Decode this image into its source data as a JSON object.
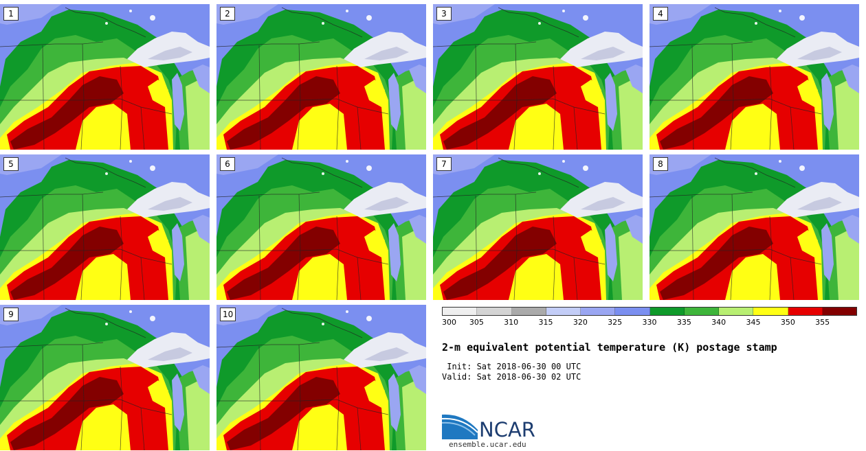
{
  "panels": [
    {
      "label": "1"
    },
    {
      "label": "2"
    },
    {
      "label": "3"
    },
    {
      "label": "4"
    },
    {
      "label": "5"
    },
    {
      "label": "6"
    },
    {
      "label": "7"
    },
    {
      "label": "8"
    },
    {
      "label": "9"
    },
    {
      "label": "10"
    }
  ],
  "colorbar": {
    "ticks": [
      "300",
      "305",
      "310",
      "315",
      "320",
      "325",
      "330",
      "335",
      "340",
      "345",
      "350",
      "355"
    ],
    "colors": [
      "#efefef",
      "#d4d4d4",
      "#aaaaaa",
      "#c3cdf7",
      "#9aa6f2",
      "#7b8ff0",
      "#0f9a2a",
      "#3eb53a",
      "#b8ef72",
      "#ffff14",
      "#e60000",
      "#830000"
    ]
  },
  "title": "2-m equivalent potential temperature (K) postage stamp",
  "init": " Init: Sat 2018-06-30 00 UTC",
  "valid": "Valid: Sat 2018-06-30 02 UTC",
  "logo": {
    "text": "NCAR",
    "url": "ensemble.ucar.edu"
  }
}
